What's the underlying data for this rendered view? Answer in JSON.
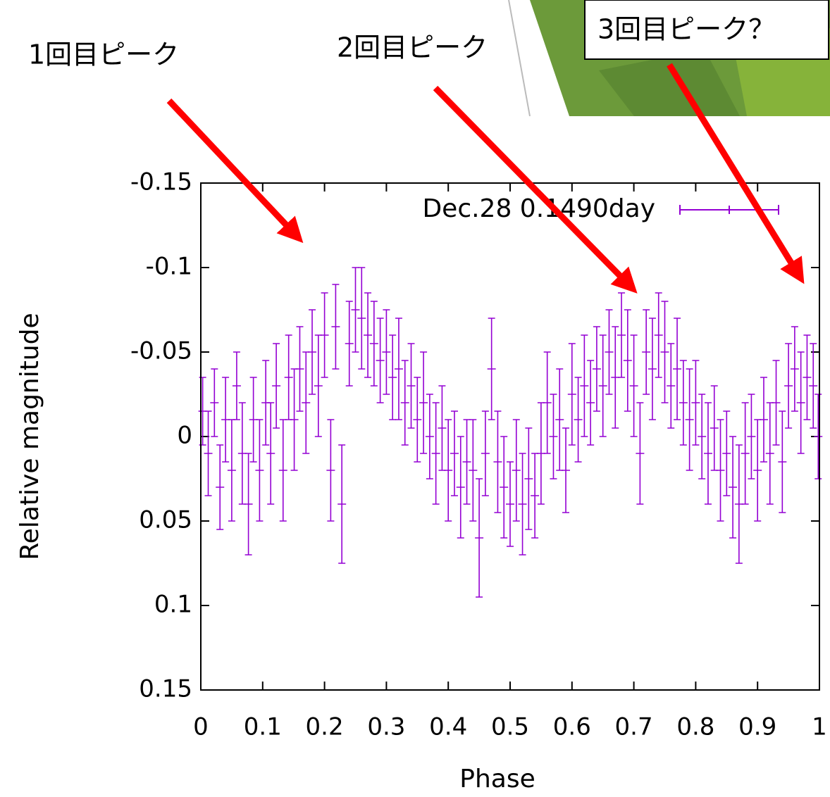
{
  "chart_data": {
    "type": "errorbar",
    "x_label": "Phase",
    "y_label": "Relative magnitude",
    "annotations": [
      "1回目ピーク",
      "2回目ピーク",
      "3回目ピーク？"
    ],
    "xlim": [
      0,
      1
    ],
    "xticks": [
      0,
      0.1,
      0.2,
      0.3,
      0.4,
      0.5,
      0.6,
      0.7,
      0.8,
      0.9,
      1
    ],
    "ylim": [
      -0.15,
      0.15
    ],
    "yticks": [
      -0.15,
      -0.1,
      -0.05,
      0,
      0.05,
      0.1,
      0.15
    ],
    "y_inverted": true,
    "legend": "top-right",
    "x": [
      0.003,
      0.012,
      0.022,
      0.031,
      0.04,
      0.05,
      0.058,
      0.067,
      0.077,
      0.085,
      0.095,
      0.105,
      0.113,
      0.122,
      0.133,
      0.142,
      0.151,
      0.16,
      0.17,
      0.18,
      0.19,
      0.2,
      0.21,
      0.218,
      0.228,
      0.24,
      0.25,
      0.26,
      0.27,
      0.28,
      0.29,
      0.3,
      0.31,
      0.32,
      0.33,
      0.34,
      0.35,
      0.36,
      0.37,
      0.38,
      0.39,
      0.4,
      0.41,
      0.42,
      0.43,
      0.44,
      0.45,
      0.46,
      0.47,
      0.48,
      0.49,
      0.5,
      0.51,
      0.52,
      0.53,
      0.54,
      0.55,
      0.56,
      0.57,
      0.58,
      0.59,
      0.6,
      0.61,
      0.62,
      0.63,
      0.64,
      0.65,
      0.66,
      0.67,
      0.68,
      0.69,
      0.7,
      0.71,
      0.72,
      0.73,
      0.74,
      0.75,
      0.76,
      0.77,
      0.78,
      0.79,
      0.8,
      0.81,
      0.82,
      0.83,
      0.84,
      0.85,
      0.86,
      0.87,
      0.88,
      0.89,
      0.9,
      0.91,
      0.92,
      0.93,
      0.94,
      0.95,
      0.96,
      0.97,
      0.98,
      0.99,
      0.998
    ],
    "series": [
      {
        "name": "Dec.28 0.1490day",
        "color": "#9400d3",
        "values": [
          -0.015,
          0.01,
          -0.02,
          0.03,
          -0.01,
          0.02,
          -0.03,
          0.01,
          0.04,
          -0.01,
          0.02,
          -0.02,
          0.01,
          -0.03,
          0.02,
          -0.035,
          -0.01,
          -0.04,
          -0.02,
          -0.05,
          -0.03,
          -0.06,
          0.02,
          -0.065,
          0.04,
          -0.055,
          -0.075,
          -0.07,
          -0.06,
          -0.055,
          -0.045,
          -0.05,
          -0.035,
          -0.04,
          -0.02,
          -0.03,
          -0.01,
          -0.02,
          0,
          0.01,
          -0.005,
          0.02,
          0.01,
          0.03,
          0.015,
          0.02,
          0.06,
          0.01,
          -0.04,
          0.015,
          0.03,
          0.04,
          0.02,
          0.04,
          0.025,
          0.035,
          0.01,
          -0.02,
          0,
          -0.01,
          0.02,
          -0.025,
          -0.01,
          -0.03,
          -0.02,
          -0.04,
          -0.03,
          -0.05,
          -0.035,
          -0.06,
          -0.045,
          -0.03,
          0.01,
          -0.05,
          -0.04,
          -0.06,
          -0.05,
          -0.03,
          -0.04,
          -0.02,
          -0.01,
          -0.02,
          0,
          0.01,
          -0.005,
          0.02,
          0.01,
          0.03,
          0.04,
          0.01,
          0,
          0.02,
          -0.01,
          0.01,
          -0.02,
          0.015,
          -0.03,
          -0.04,
          -0.02,
          -0.035,
          -0.03,
          0
        ],
        "errors": [
          0.02,
          0.025,
          0.02,
          0.025,
          0.025,
          0.03,
          0.02,
          0.03,
          0.03,
          0.025,
          0.03,
          0.025,
          0.03,
          0.025,
          0.03,
          0.025,
          0.03,
          0.025,
          0.03,
          0.025,
          0.03,
          0.025,
          0.03,
          0.025,
          0.035,
          0.025,
          0.025,
          0.03,
          0.025,
          0.025,
          0.025,
          0.025,
          0.025,
          0.03,
          0.025,
          0.025,
          0.025,
          0.03,
          0.025,
          0.03,
          0.025,
          0.03,
          0.025,
          0.03,
          0.025,
          0.03,
          0.035,
          0.025,
          0.03,
          0.03,
          0.03,
          0.025,
          0.03,
          0.03,
          0.03,
          0.025,
          0.03,
          0.03,
          0.025,
          0.03,
          0.025,
          0.03,
          0.025,
          0.03,
          0.025,
          0.025,
          0.03,
          0.025,
          0.03,
          0.025,
          0.03,
          0.03,
          0.03,
          0.025,
          0.03,
          0.025,
          0.03,
          0.025,
          0.03,
          0.025,
          0.03,
          0.025,
          0.025,
          0.03,
          0.025,
          0.03,
          0.025,
          0.03,
          0.035,
          0.03,
          0.025,
          0.03,
          0.025,
          0.03,
          0.025,
          0.03,
          0.025,
          0.025,
          0.03,
          0.025,
          0.025,
          0.025
        ]
      }
    ]
  }
}
